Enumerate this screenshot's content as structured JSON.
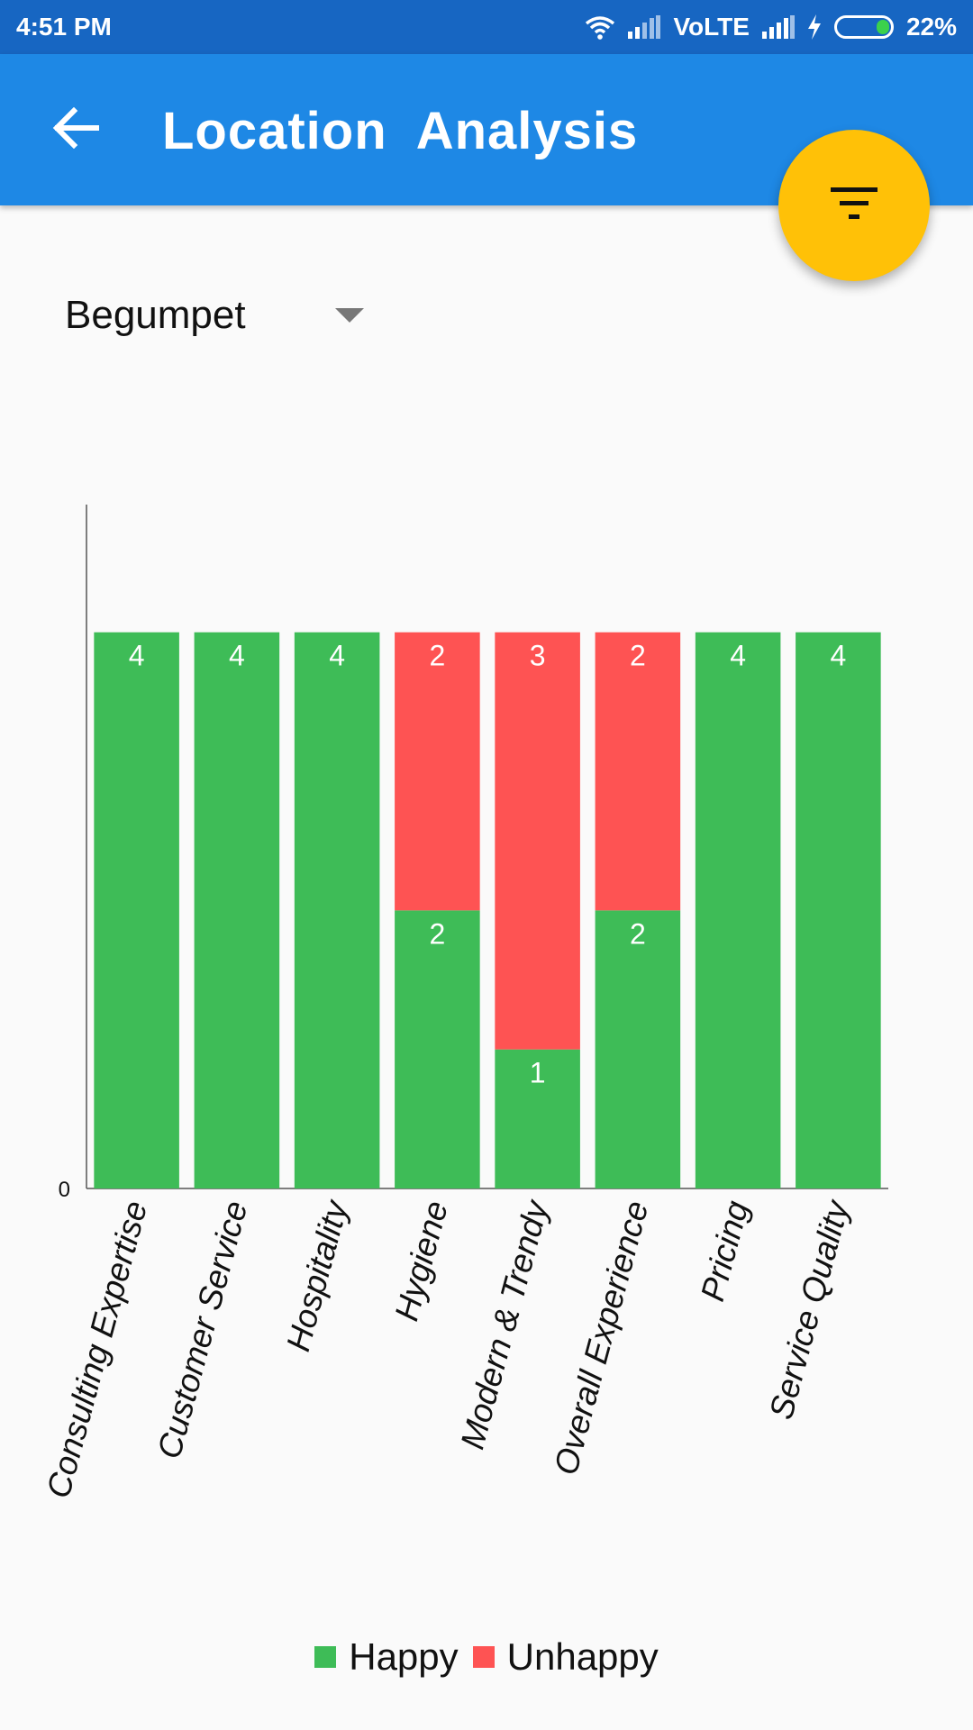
{
  "status_bar": {
    "time": "4:51 PM",
    "network_label": "VoLTE",
    "battery_percent": "22%"
  },
  "app_bar": {
    "title": "Location  Analysis",
    "back_icon": "arrow-left-icon",
    "filter_icon": "filter-list-icon"
  },
  "location_dropdown": {
    "selected": "Begumpet",
    "icon": "dropdown-arrow-icon"
  },
  "colors": {
    "status_bar": "#1766c2",
    "app_bar": "#1e88e5",
    "fab": "#ffc107",
    "happy": "#3ebc57",
    "unhappy": "#fe5353"
  },
  "chart_data": {
    "type": "bar",
    "stacked": true,
    "categories": [
      "Consulting Expertise",
      "Customer Service",
      "Hospitality",
      "Hygiene",
      "Modern & Trendy",
      "Overall Experience",
      "Pricing",
      "Service Quality"
    ],
    "series": [
      {
        "name": "Happy",
        "values": [
          4,
          4,
          4,
          2,
          1,
          2,
          4,
          4
        ],
        "color": "#3ebc57"
      },
      {
        "name": "Unhappy",
        "values": [
          0,
          0,
          0,
          2,
          3,
          2,
          0,
          0
        ],
        "color": "#fe5353"
      }
    ],
    "ytick_labels": [
      "0"
    ],
    "ylim": [
      0,
      4.4
    ],
    "grid": false,
    "legend_position": "bottom",
    "stack_mode": "percent"
  }
}
